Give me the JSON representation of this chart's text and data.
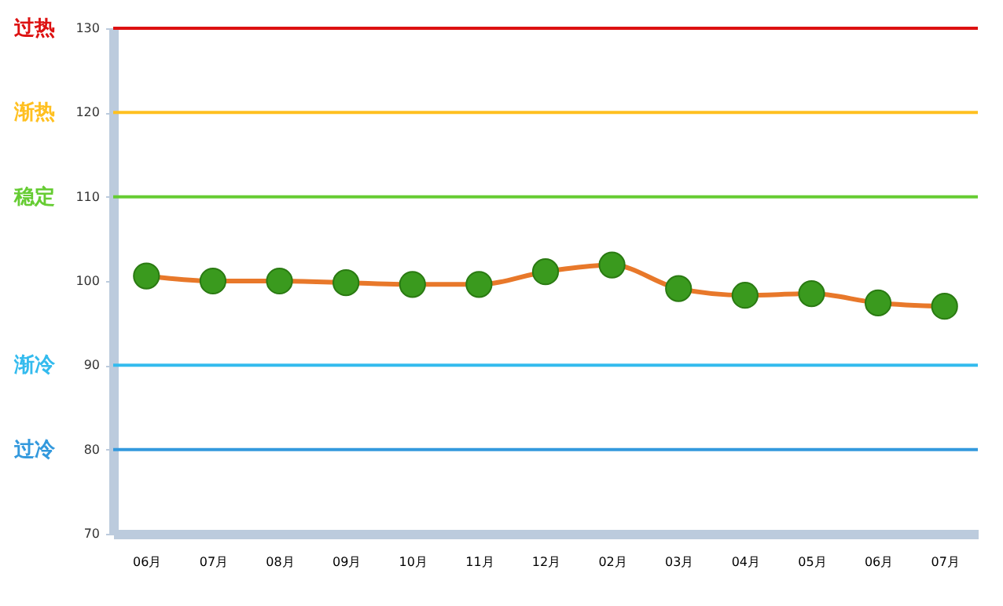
{
  "chart_data": {
    "type": "line",
    "categories": [
      "06月",
      "07月",
      "08月",
      "09月",
      "10月",
      "11月",
      "12月",
      "02月",
      "03月",
      "04月",
      "05月",
      "06月",
      "07月"
    ],
    "series": [
      {
        "color": "#e8782a",
        "values": [
          100.6,
          100.0,
          100.0,
          99.8,
          99.6,
          99.6,
          101.1,
          101.9,
          99.1,
          98.3,
          98.5,
          97.4,
          97.0
        ]
      }
    ],
    "marker": "circle",
    "ylim": [
      70,
      130
    ],
    "yticks": [
      70,
      80,
      90,
      100,
      110,
      120,
      130
    ],
    "grid": false,
    "ref_lines": [
      {
        "axis": "y",
        "value": 130,
        "color": "#dd1111"
      },
      {
        "axis": "y",
        "value": 120,
        "color": "#ffc020"
      },
      {
        "axis": "y",
        "value": 110,
        "color": "#66cc33"
      },
      {
        "axis": "y",
        "value": 90,
        "color": "#33bbee"
      },
      {
        "axis": "y",
        "value": 80,
        "color": "#3399dd"
      }
    ],
    "annotations": [
      "过热",
      "渐热",
      "稳定",
      "渐冷",
      "过冷"
    ]
  }
}
